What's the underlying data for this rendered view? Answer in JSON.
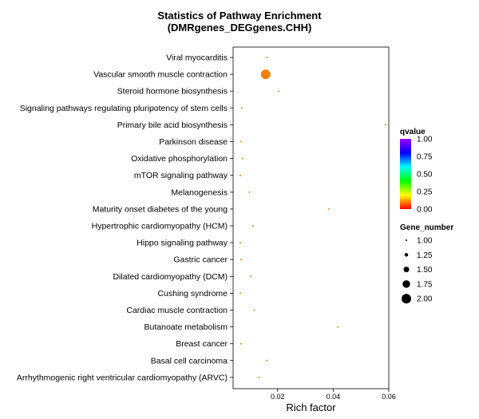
{
  "chart_data": {
    "type": "scatter",
    "title_line1": "Statistics of Pathway Enrichment",
    "title_line2": "(DMRgenes_DEGgenes.CHH)",
    "xlabel": "Rich factor",
    "ylabel": "",
    "xlim": [
      0.004,
      0.06
    ],
    "xticks": [
      0.02,
      0.04,
      0.06
    ],
    "xtick_labels": [
      "0.02",
      "0.04",
      "0.06"
    ],
    "categories": [
      "Viral myocarditis",
      "Vascular smooth muscle contraction",
      "Steroid hormone biosynthesis",
      "Signaling pathways regulating pluripotency of stem cells",
      "Primary bile acid biosynthesis",
      "Parkinson disease",
      "Oxidative phosphorylation",
      "mTOR signaling pathway",
      "Melanogenesis",
      "Maturity onset diabetes of the young",
      "Hypertrophic cardiomyopathy (HCM)",
      "Hippo signaling pathway",
      "Gastric cancer",
      "Dilated cardiomyopathy (DCM)",
      "Cushing syndrome",
      "Cardiac muscle contraction",
      "Butanoate metabolism",
      "Breast cancer",
      "Basal cell carcinoma",
      "Arrhythmogenic right ventricular cardiomyopathy (ARVC)"
    ],
    "points": [
      {
        "category": "Viral myocarditis",
        "rich_factor": 0.0162,
        "gene_number": 1,
        "qvalue": 0.05
      },
      {
        "category": "Vascular smooth muscle contraction",
        "rich_factor": 0.0157,
        "gene_number": 2,
        "qvalue": 0.05
      },
      {
        "category": "Steroid hormone biosynthesis",
        "rich_factor": 0.0204,
        "gene_number": 1,
        "qvalue": 0.05
      },
      {
        "category": "Signaling pathways regulating pluripotency of stem cells",
        "rich_factor": 0.0071,
        "gene_number": 1,
        "qvalue": 0.05
      },
      {
        "category": "Primary bile acid biosynthesis",
        "rich_factor": 0.0588,
        "gene_number": 1,
        "qvalue": 0.05
      },
      {
        "category": "Parkinson disease",
        "rich_factor": 0.0068,
        "gene_number": 1,
        "qvalue": 0.05
      },
      {
        "category": "Oxidative phosphorylation",
        "rich_factor": 0.0074,
        "gene_number": 1,
        "qvalue": 0.05
      },
      {
        "category": "mTOR signaling pathway",
        "rich_factor": 0.0066,
        "gene_number": 1,
        "qvalue": 0.05
      },
      {
        "category": "Melanogenesis",
        "rich_factor": 0.0099,
        "gene_number": 1,
        "qvalue": 0.05
      },
      {
        "category": "Maturity onset diabetes of the young",
        "rich_factor": 0.0385,
        "gene_number": 1,
        "qvalue": 0.05
      },
      {
        "category": "Hypertrophic cardiomyopathy (HCM)",
        "rich_factor": 0.0111,
        "gene_number": 1,
        "qvalue": 0.05
      },
      {
        "category": "Hippo signaling pathway",
        "rich_factor": 0.0066,
        "gene_number": 1,
        "qvalue": 0.05
      },
      {
        "category": "Gastric cancer",
        "rich_factor": 0.0068,
        "gene_number": 1,
        "qvalue": 0.05
      },
      {
        "category": "Dilated cardiomyopathy (DCM)",
        "rich_factor": 0.0104,
        "gene_number": 1,
        "qvalue": 0.05
      },
      {
        "category": "Cushing syndrome",
        "rich_factor": 0.0066,
        "gene_number": 1,
        "qvalue": 0.05
      },
      {
        "category": "Cardiac muscle contraction",
        "rich_factor": 0.0116,
        "gene_number": 1,
        "qvalue": 0.05
      },
      {
        "category": "Butanoate metabolism",
        "rich_factor": 0.0417,
        "gene_number": 1,
        "qvalue": 0.05
      },
      {
        "category": "Breast cancer",
        "rich_factor": 0.0068,
        "gene_number": 1,
        "qvalue": 0.05
      },
      {
        "category": "Basal cell carcinoma",
        "rich_factor": 0.0161,
        "gene_number": 1,
        "qvalue": 0.05
      },
      {
        "category": "Arrhythmogenic right ventricular cardiomyopathy (ARVC)",
        "rich_factor": 0.0133,
        "gene_number": 1,
        "qvalue": 0.05
      }
    ],
    "legend": {
      "color_title": "qvalue",
      "color_ticks": [
        "1.00",
        "0.75",
        "0.50",
        "0.25",
        "0.00"
      ],
      "color_tick_values": [
        1.0,
        0.75,
        0.5,
        0.25,
        0.0
      ],
      "color_scale": [
        "#ff0000",
        "#ffff00",
        "#00ff00",
        "#00ffff",
        "#0000ff",
        "#9a00ff"
      ],
      "size_title": "Gene_number",
      "size_entries": [
        {
          "label": "1.00",
          "value": 1.0
        },
        {
          "label": "1.25",
          "value": 1.25
        },
        {
          "label": "1.50",
          "value": 1.5
        },
        {
          "label": "1.75",
          "value": 1.75
        },
        {
          "label": "2.00",
          "value": 2.0
        }
      ],
      "placement": "right"
    },
    "grid": false,
    "point_color": "#f0810f"
  }
}
